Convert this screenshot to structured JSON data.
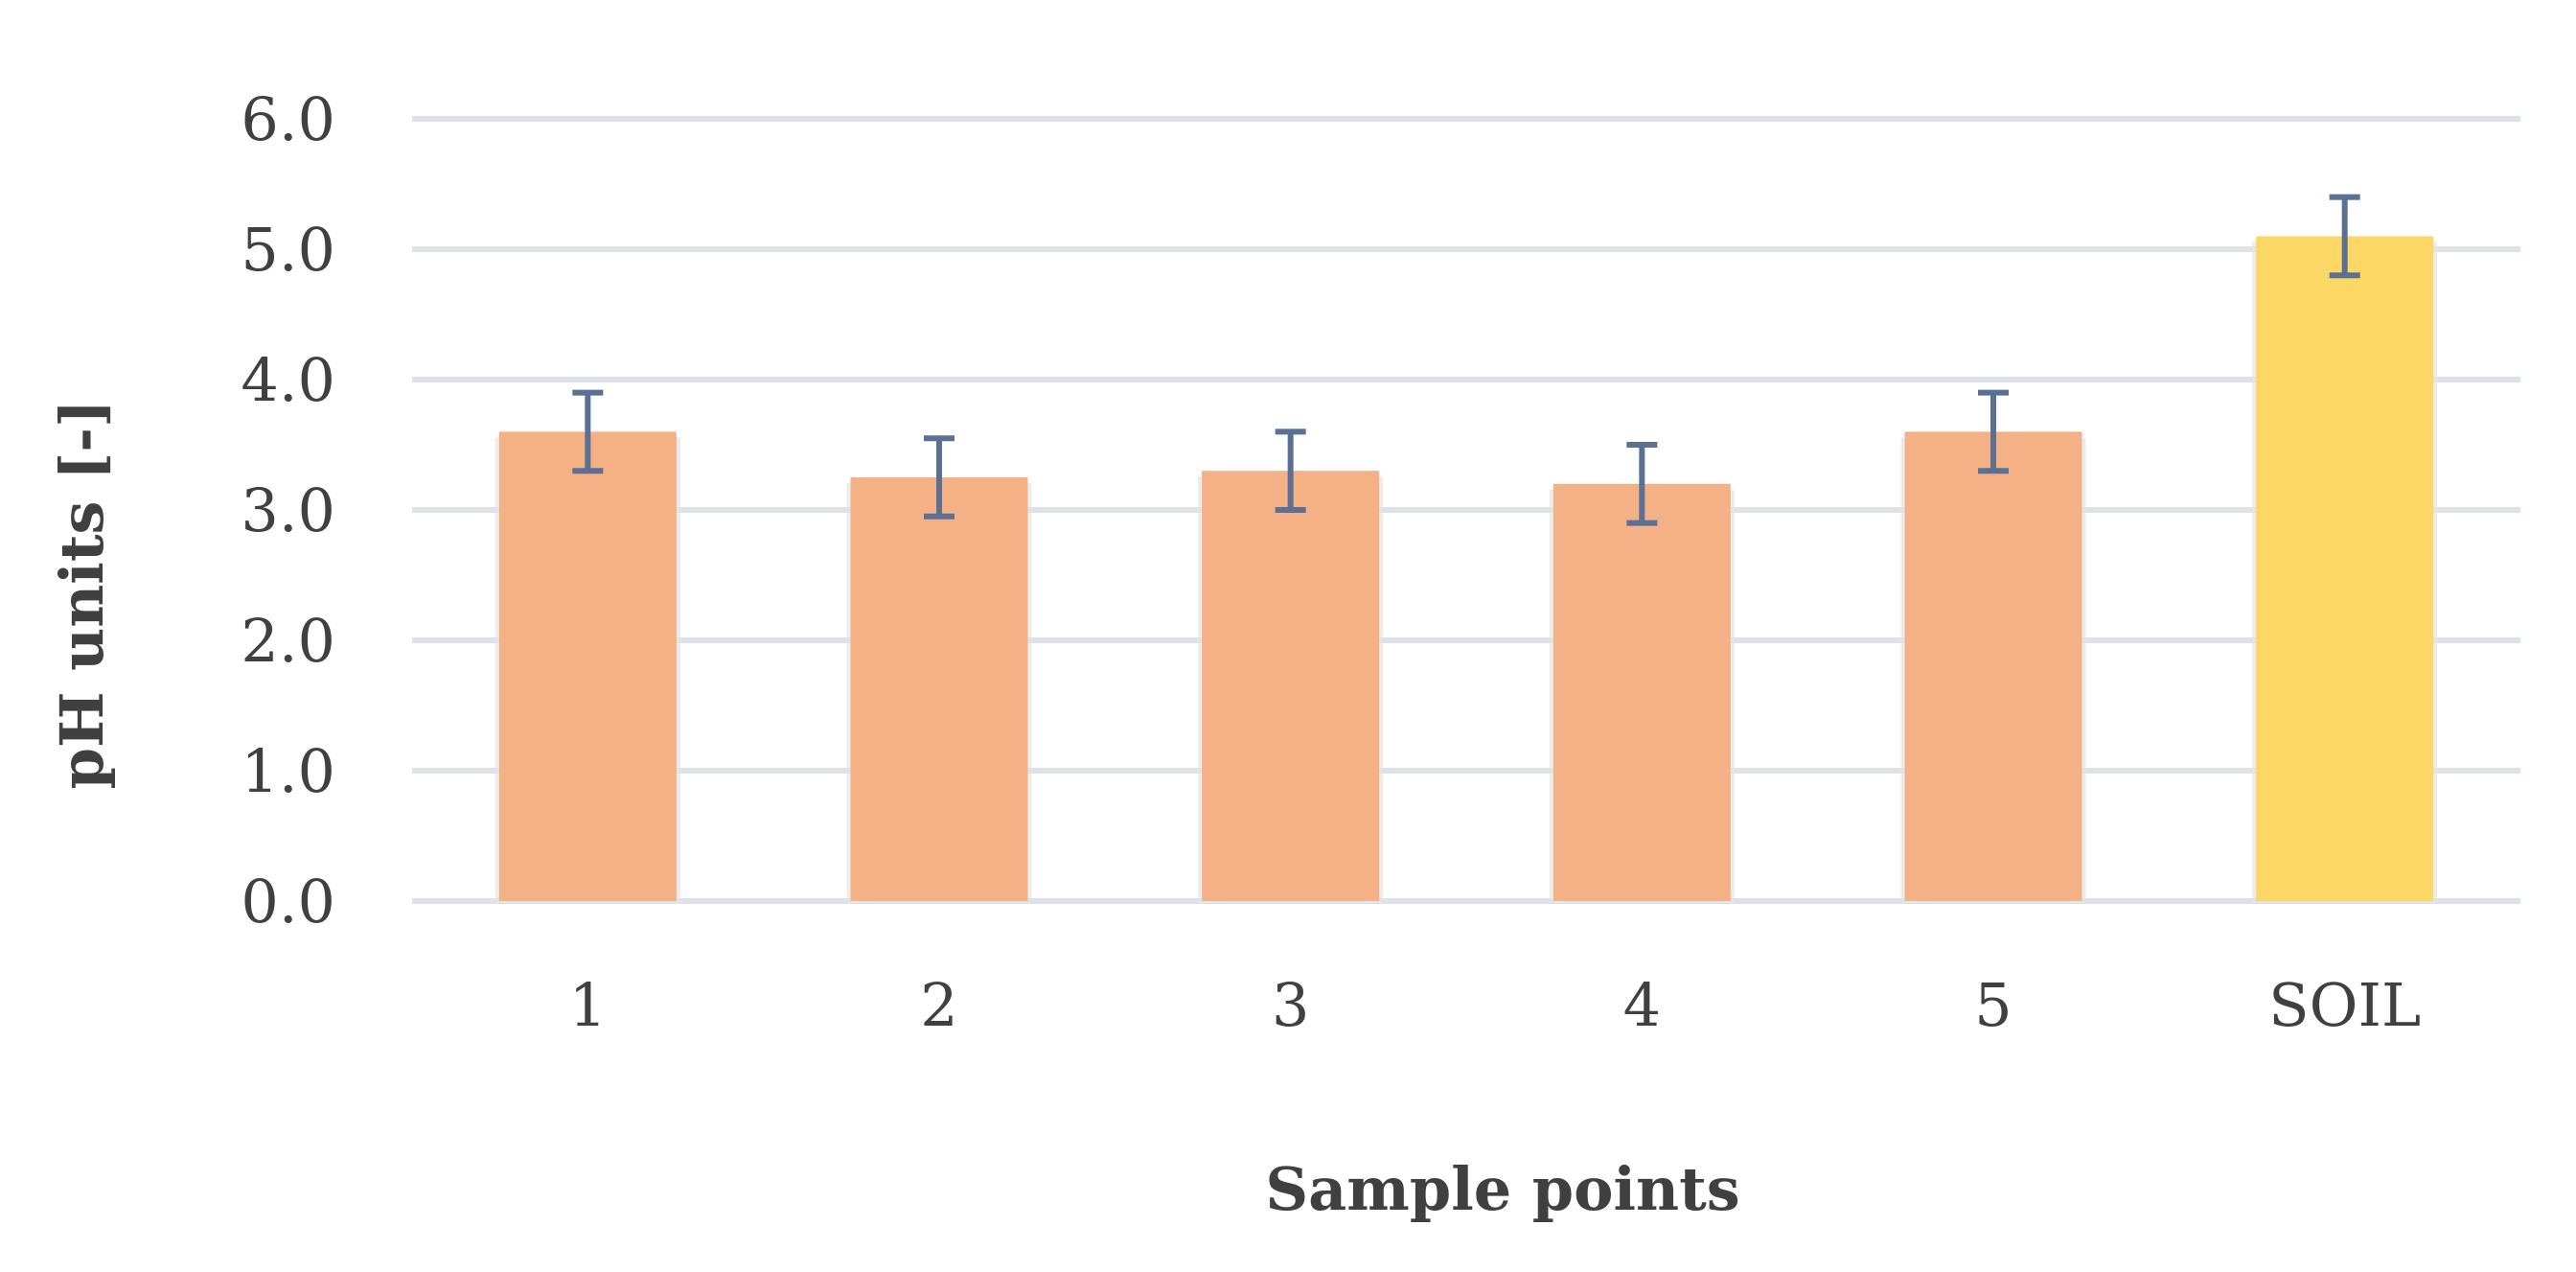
{
  "chart_data": {
    "type": "bar",
    "categories": [
      "1",
      "2",
      "3",
      "4",
      "5",
      "SOIL"
    ],
    "values": [
      3.6,
      3.25,
      3.3,
      3.2,
      3.6,
      5.1
    ],
    "error": [
      0.3,
      0.3,
      0.3,
      0.3,
      0.3,
      0.3
    ],
    "xlabel": "Sample points",
    "ylabel": "pH units [-]",
    "ylim": [
      0,
      6
    ],
    "yticks": [
      "0.0",
      "1.0",
      "2.0",
      "3.0",
      "4.0",
      "5.0",
      "6.0"
    ],
    "grid": true,
    "legend": "none",
    "colors": {
      "bar": "#f3b185",
      "highlight_bar": "#fdd766",
      "error_bar": "#5b7093",
      "gridline": "#dde2ea",
      "text": "#404040"
    },
    "highlight_category": "SOIL"
  }
}
